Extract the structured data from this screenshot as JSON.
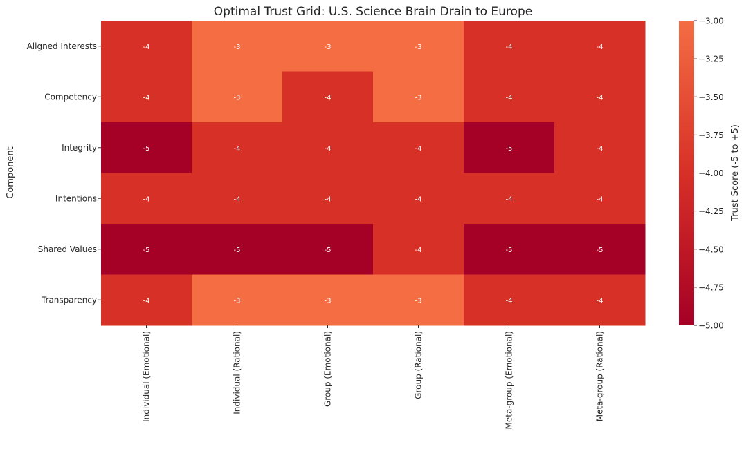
{
  "chart_data": {
    "type": "heatmap",
    "title": "Optimal Trust Grid: U.S. Science Brain Drain to Europe",
    "xlabel": "",
    "ylabel": "Component",
    "columns": [
      "Individual (Emotional)",
      "Individual (Rational)",
      "Group (Emotional)",
      "Group (Rational)",
      "Meta-group (Emotional)",
      "Meta-group (Rational)"
    ],
    "rows": [
      "Aligned Interests",
      "Competency",
      "Integrity",
      "Intentions",
      "Shared Values",
      "Transparency"
    ],
    "values": [
      [
        -4,
        -3,
        -3,
        -3,
        -4,
        -4
      ],
      [
        -4,
        -3,
        -4,
        -3,
        -4,
        -4
      ],
      [
        -5,
        -4,
        -4,
        -4,
        -5,
        -4
      ],
      [
        -4,
        -4,
        -4,
        -4,
        -4,
        -4
      ],
      [
        -5,
        -5,
        -5,
        -4,
        -5,
        -5
      ],
      [
        -4,
        -3,
        -3,
        -3,
        -4,
        -4
      ]
    ],
    "annotations": true,
    "colorbar": {
      "label": "Trust Score (-5 to +5)",
      "range": [
        -5,
        -3
      ],
      "ticks": [
        "−5.00",
        "−4.75",
        "−4.50",
        "−4.25",
        "−4.00",
        "−3.75",
        "−3.50",
        "−3.25",
        "−3.00"
      ],
      "colors": {
        "-5": "#a50026",
        "-4": "#d73027",
        "-3": "#f46d43"
      }
    }
  }
}
